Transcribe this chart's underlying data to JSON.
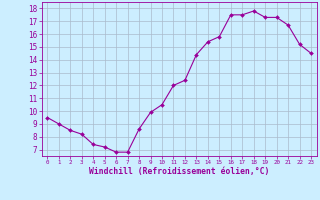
{
  "x": [
    0,
    1,
    2,
    3,
    4,
    5,
    6,
    7,
    8,
    9,
    10,
    11,
    12,
    13,
    14,
    15,
    16,
    17,
    18,
    19,
    20,
    21,
    22,
    23
  ],
  "y": [
    9.5,
    9.0,
    8.5,
    8.2,
    7.4,
    7.2,
    6.8,
    6.8,
    8.6,
    9.9,
    10.5,
    12.0,
    12.4,
    14.4,
    15.4,
    15.8,
    17.5,
    17.5,
    17.8,
    17.3,
    17.3,
    16.7,
    15.2,
    14.5
  ],
  "line_color": "#990099",
  "marker": "D",
  "marker_size": 2.0,
  "bg_color": "#cceeff",
  "grid_color": "#aabbcc",
  "ylabel_ticks": [
    7,
    8,
    9,
    10,
    11,
    12,
    13,
    14,
    15,
    16,
    17,
    18
  ],
  "xlabel": "Windchill (Refroidissement éolien,°C)",
  "xlim": [
    -0.5,
    23.5
  ],
  "ylim": [
    6.5,
    18.5
  ],
  "xtick_labels": [
    "0",
    "1",
    "2",
    "3",
    "4",
    "5",
    "6",
    "7",
    "8",
    "9",
    "10",
    "11",
    "12",
    "13",
    "14",
    "15",
    "16",
    "17",
    "18",
    "19",
    "20",
    "21",
    "22",
    "23"
  ],
  "tick_color": "#990099",
  "label_color": "#990099",
  "axis_color": "#990099",
  "ytick_fontsize": 5.5,
  "xtick_fontsize": 4.2,
  "xlabel_fontsize": 5.8
}
